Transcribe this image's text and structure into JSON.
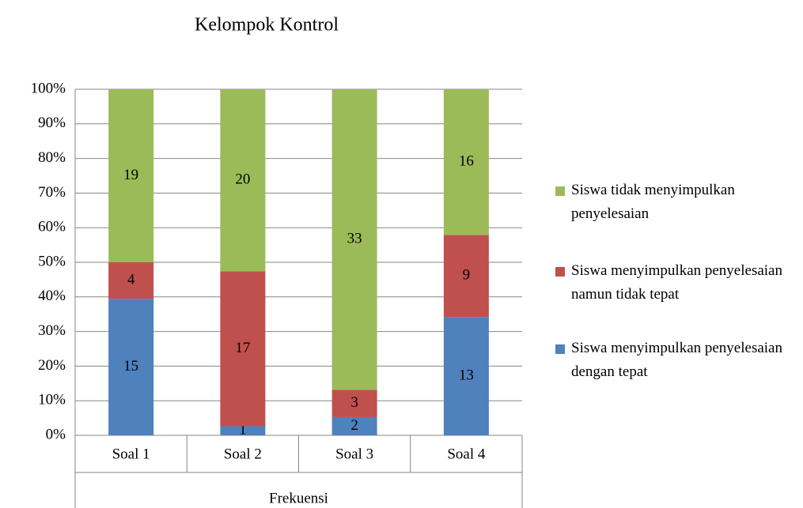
{
  "chart_data": {
    "type": "bar",
    "stacking": "percent",
    "title": "Kelompok Kontrol",
    "categories": [
      "Soal 1",
      "Soal 2",
      "Soal 3",
      "Soal 4"
    ],
    "x_group_label": "Frekuensi",
    "series": [
      {
        "name": "Siswa menyimpulkan penyelesaian dengan tepat",
        "color": "#4f81bd",
        "values": [
          15,
          1,
          2,
          13
        ]
      },
      {
        "name": "Siswa menyimpulkan penyelesaian namun tidak tepat",
        "color": "#c0504d",
        "values": [
          4,
          17,
          3,
          9
        ]
      },
      {
        "name": "Siswa tidak menyimpulkan penyelesaian",
        "color": "#9bbb59",
        "values": [
          19,
          20,
          33,
          16
        ]
      }
    ],
    "ylim": [
      0,
      100
    ],
    "yticks": [
      {
        "value": 0,
        "label": "0%"
      },
      {
        "value": 10,
        "label": "10%"
      },
      {
        "value": 20,
        "label": "20%"
      },
      {
        "value": 30,
        "label": "30%"
      },
      {
        "value": 40,
        "label": "40%"
      },
      {
        "value": 50,
        "label": "50%"
      },
      {
        "value": 60,
        "label": "60%"
      },
      {
        "value": 70,
        "label": "70%"
      },
      {
        "value": 80,
        "label": "80%"
      },
      {
        "value": 90,
        "label": "90%"
      },
      {
        "value": 100,
        "label": "100%"
      }
    ],
    "grid": true,
    "legend": "right"
  }
}
